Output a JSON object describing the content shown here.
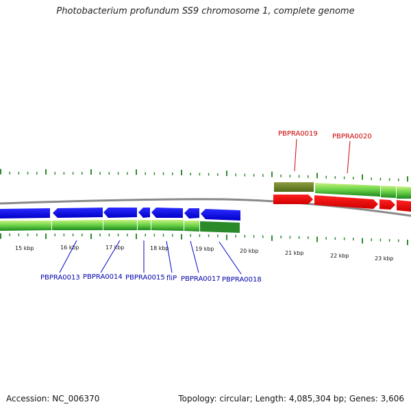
{
  "title": "Photobacterium profundum SS9 chromosome 1, complete genome",
  "footer": {
    "accession": "Accession: NC_006370",
    "summary": "Topology: circular; Length: 4,085,304 bp; Genes: 3,606"
  },
  "colors": {
    "minus_strand": "#0000ee",
    "plus_strand": "#ee0000",
    "label_minus": "#0000aa",
    "label_plus": "#cc0000",
    "tick": "#2d8a2d",
    "backbone": "#888888"
  },
  "scale_labels": [
    "15 kbp",
    "16 kbp",
    "17 kbp",
    "18 kbp",
    "19 kbp",
    "20 kbp",
    "21 kbp",
    "22 kbp",
    "23 kbp"
  ],
  "genes_minus": [
    {
      "label": "PBPRA0013"
    },
    {
      "label": "PBPRA0014"
    },
    {
      "label": "PBPRA0015"
    },
    {
      "label": "fliP"
    },
    {
      "label": "PBPRA0017"
    },
    {
      "label": "PBPRA0018"
    }
  ],
  "genes_plus": [
    {
      "label": "PBPRA0019"
    },
    {
      "label": "PBPRA0020"
    }
  ]
}
